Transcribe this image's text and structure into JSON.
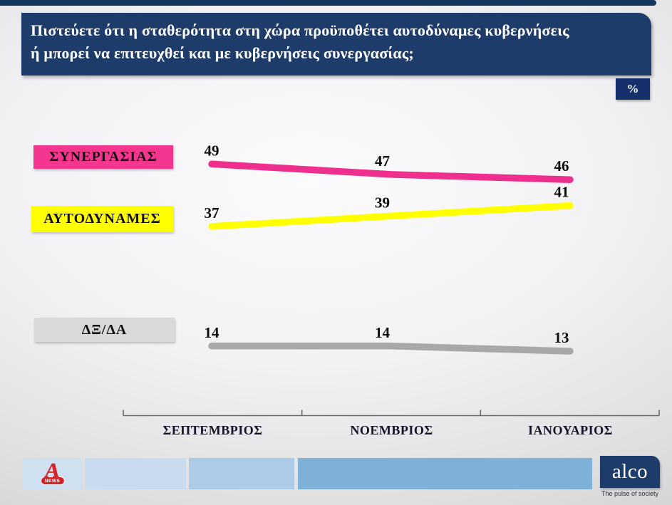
{
  "header": {
    "question_line1": "Πιστεύετε ότι η σταθερότητα στη χώρα προϋποθέτει αυτοδύναμες κυβερνήσεις",
    "question_line2": "ή μπορεί να επιτευχθεί και με κυβερνήσεις συνεργασίας;"
  },
  "percent_badge": "%",
  "chart_data": {
    "type": "line",
    "title": "Πιστεύετε ότι η σταθερότητα στη χώρα προϋποθέτει αυτοδύναμες κυβερνήσεις ή μπορεί να επιτευχθεί και με κυβερνήσεις συνεργασίας;",
    "unit": "%",
    "categories": [
      "ΣΕΠΤΕΜΒΡΙΟΣ",
      "ΝΟΕΜΒΡΙΟΣ",
      "ΙΑΝΟΥΑΡΙΟΣ"
    ],
    "series": [
      {
        "name": "ΣΥΝΕΡΓΑΣΙΑΣ",
        "values": [
          49,
          47,
          46
        ],
        "color": "#ef2f8e",
        "label_bg": "#f5368f"
      },
      {
        "name": "ΑΥΤΟΔΥΝΑΜΕΣ",
        "values": [
          37,
          39,
          41
        ],
        "color": "#ffff00",
        "label_bg": "#ffff00"
      },
      {
        "name": "ΔΞ/ΔΑ",
        "values": [
          14,
          14,
          13
        ],
        "color": "#a8a8a8",
        "label_bg": "#d9d9d9"
      }
    ],
    "xlabel": "",
    "ylabel": "",
    "ylim": [
      0,
      60
    ],
    "grid": false,
    "legend_position": "left",
    "value_labels": true
  },
  "colors": {
    "navy": "#1d3c6a",
    "navy_dark": "#16355f",
    "navy_badge": "#15306b",
    "axis": "#6a6a6a",
    "footer_blues": [
      "#cfe0f0",
      "#c9dcef",
      "#abcbe6",
      "#7fb0d8"
    ]
  },
  "footer": {
    "alpha_letter": "A",
    "alpha_news_label": "NEWS",
    "alco_logo_text": "alco",
    "alco_tagline": "The pulse of society"
  }
}
